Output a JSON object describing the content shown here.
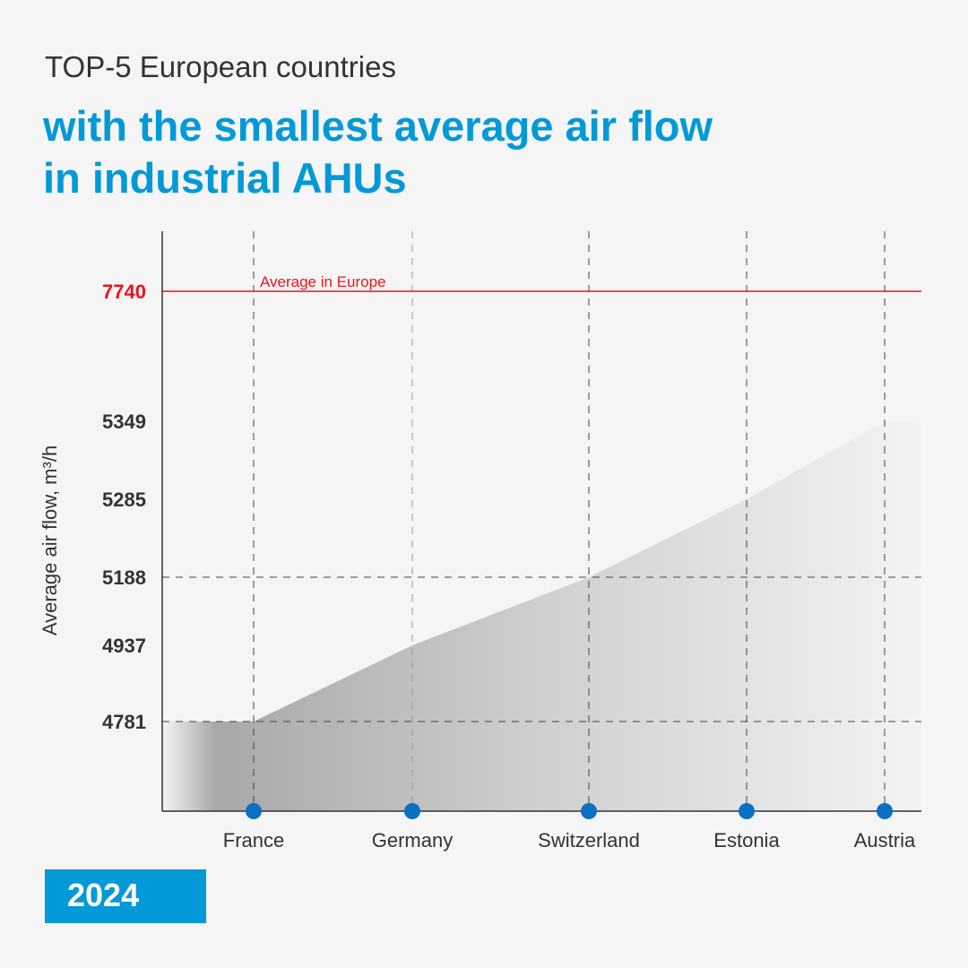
{
  "header": {
    "subtitle": "TOP-5 European countries",
    "title_line1": "with the smallest average air flow",
    "title_line2": "in industrial AHUs"
  },
  "year": "2024",
  "colors": {
    "accent": "#0299d8",
    "reference": "#e8141c",
    "marker": "#0b6fc4",
    "axis": "#333333"
  },
  "chart_data": {
    "type": "area",
    "categories": [
      "France",
      "Germany",
      "Switzerland",
      "Estonia",
      "Austria"
    ],
    "values": [
      4781,
      4937,
      5188,
      5285,
      5349
    ],
    "ylabel": "Average air flow, m³/h",
    "reference_line": {
      "value": 7740,
      "label": "Average in Europe"
    },
    "y_tick_labels": [
      "4781",
      "4937",
      "5188",
      "5285",
      "5349",
      "7740"
    ],
    "highlight_lines": [
      4781,
      5188
    ],
    "grid": "vertical dashed"
  }
}
